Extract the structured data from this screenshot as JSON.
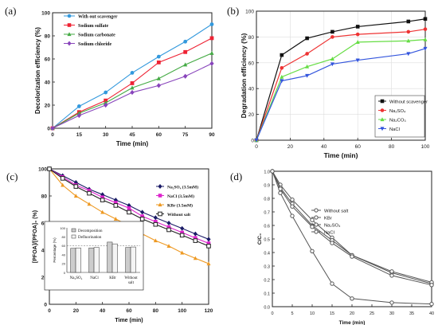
{
  "chart_data": [
    {
      "panel_label": "(a)",
      "type": "line",
      "xlabel": "Time (min)",
      "ylabel": "Decolorization efficiency (%)",
      "xlim": [
        0,
        90
      ],
      "ylim": [
        0,
        100
      ],
      "xticks": [
        0,
        15,
        30,
        45,
        60,
        75,
        90
      ],
      "yticks": [
        0,
        20,
        40,
        60,
        80,
        100
      ],
      "legend_position": "top-left",
      "x": [
        0,
        15,
        30,
        45,
        60,
        75,
        90
      ],
      "series": [
        {
          "name": "With out scavenger",
          "color": "#3399dd",
          "marker": "circle",
          "values": [
            0,
            19,
            31,
            48,
            62,
            75,
            90
          ]
        },
        {
          "name": "Sodium sulfate",
          "color": "#ee2233",
          "marker": "square",
          "values": [
            0,
            14,
            24,
            39,
            57,
            66,
            78
          ]
        },
        {
          "name": "Sodium carbonate",
          "color": "#44aa44",
          "marker": "triangle",
          "values": [
            0,
            13,
            22,
            35,
            43,
            55,
            65
          ]
        },
        {
          "name": "Sodium chloride",
          "color": "#8844bb",
          "marker": "diamond",
          "values": [
            0,
            11,
            20,
            31,
            37,
            45,
            56
          ]
        }
      ]
    },
    {
      "panel_label": "(b)",
      "type": "line",
      "xlabel": "Time (min)",
      "ylabel": "Degradation efficiency (%)",
      "xlim": [
        0,
        100
      ],
      "ylim": [
        0,
        100
      ],
      "xticks": [
        0,
        20,
        40,
        60,
        80,
        100
      ],
      "yticks": [
        0,
        20,
        40,
        60,
        80,
        100
      ],
      "legend_position": "bottom-right",
      "x": [
        0,
        15,
        30,
        45,
        60,
        90,
        100
      ],
      "series": [
        {
          "name": "Without scavenger",
          "color": "#111111",
          "marker": "square",
          "values": [
            0,
            66,
            79,
            84,
            88,
            92,
            94
          ]
        },
        {
          "name": "Na₂SO₄",
          "color": "#ee3333",
          "marker": "circle",
          "values": [
            0,
            56,
            67,
            80,
            82,
            84,
            86
          ]
        },
        {
          "name": "Na₂CO₃",
          "color": "#66dd44",
          "marker": "triangle",
          "values": [
            0,
            49,
            57,
            63,
            76,
            77,
            78
          ]
        },
        {
          "name": "NaCl",
          "color": "#3355dd",
          "marker": "triangle-down",
          "values": [
            0,
            46,
            50,
            59,
            62,
            67,
            71
          ]
        }
      ]
    },
    {
      "panel_label": "(c)",
      "type": "line",
      "xlabel": "Time (min)",
      "ylabel": "[PFOA]/[PFOA]₀ (%)",
      "xlim": [
        0,
        120
      ],
      "ylim": [
        0,
        100
      ],
      "xticks": [
        0,
        20,
        40,
        60,
        80,
        100,
        120
      ],
      "yticks": [
        0,
        20,
        40,
        60,
        80,
        100
      ],
      "legend_position": "top-right",
      "x": [
        0,
        10,
        20,
        30,
        40,
        50,
        60,
        70,
        80,
        90,
        100,
        110,
        120
      ],
      "series": [
        {
          "name": "Na₂SO₄ (3.5mM)",
          "color": "#1a1a66",
          "marker": "diamond",
          "values": [
            100,
            95,
            90,
            85,
            81,
            77,
            73,
            68,
            64,
            60,
            56,
            52,
            48
          ]
        },
        {
          "name": "NaCl (3.5mM)",
          "color": "#dd22cc",
          "marker": "square",
          "values": [
            100,
            94,
            88,
            84,
            79,
            75,
            71,
            65,
            61,
            57,
            53,
            49,
            45
          ]
        },
        {
          "name": "KBr (3.5mM)",
          "color": "#ee9922",
          "marker": "triangle",
          "values": [
            100,
            88,
            80,
            74,
            68,
            63,
            58,
            52,
            47,
            43,
            38,
            34,
            30
          ]
        },
        {
          "name": "Without salt",
          "color": "#222222",
          "marker": "square-open",
          "values": [
            100,
            93,
            87,
            82,
            77,
            73,
            68,
            63,
            59,
            55,
            51,
            47,
            43
          ]
        }
      ],
      "inset": {
        "type": "bar",
        "ylabel": "Percentage (%)",
        "ylim": [
          0,
          100
        ],
        "yticks": [
          0,
          20,
          40,
          60,
          80,
          100
        ],
        "categories": [
          "Na₂SO₄",
          "NaCl",
          "KBr",
          "Without salt"
        ],
        "series": [
          {
            "name": "Decomposition",
            "values": [
              54,
              55,
              68,
              56
            ]
          },
          {
            "name": "Defluorination",
            "values": [
              55,
              56,
              64,
              57
            ]
          }
        ]
      }
    },
    {
      "panel_label": "(d)",
      "type": "line",
      "xlabel": "Time (min)",
      "ylabel": "C/C₀",
      "xlim": [
        0,
        40
      ],
      "ylim": [
        0,
        1.0
      ],
      "xticks": [
        0,
        5,
        10,
        15,
        20,
        25,
        30,
        35,
        40
      ],
      "yticks": [
        0,
        0.1,
        0.2,
        0.3,
        0.4,
        0.5,
        0.6,
        0.7,
        0.8,
        0.9,
        1.0
      ],
      "legend_position": "center",
      "x": [
        0,
        2,
        5,
        10,
        15,
        20,
        30,
        40
      ],
      "series": [
        {
          "name": "Without salt",
          "color": "#555555",
          "marker": "circle-open",
          "values": [
            1.0,
            0.9,
            0.79,
            0.64,
            0.51,
            0.38,
            0.25,
            0.17
          ]
        },
        {
          "name": "KBr",
          "color": "#555555",
          "marker": "circle-open",
          "values": [
            1.0,
            0.84,
            0.67,
            0.41,
            0.17,
            0.06,
            0.03,
            0.02
          ]
        },
        {
          "name": "Na₂SO₄",
          "color": "#555555",
          "marker": "circle-open",
          "values": [
            1.0,
            0.88,
            0.76,
            0.6,
            0.49,
            0.38,
            0.26,
            0.18
          ]
        },
        {
          "name": "NaCl",
          "color": "#555555",
          "marker": "circle-open",
          "values": [
            1.0,
            0.87,
            0.74,
            0.59,
            0.47,
            0.37,
            0.23,
            0.16
          ]
        }
      ]
    }
  ]
}
